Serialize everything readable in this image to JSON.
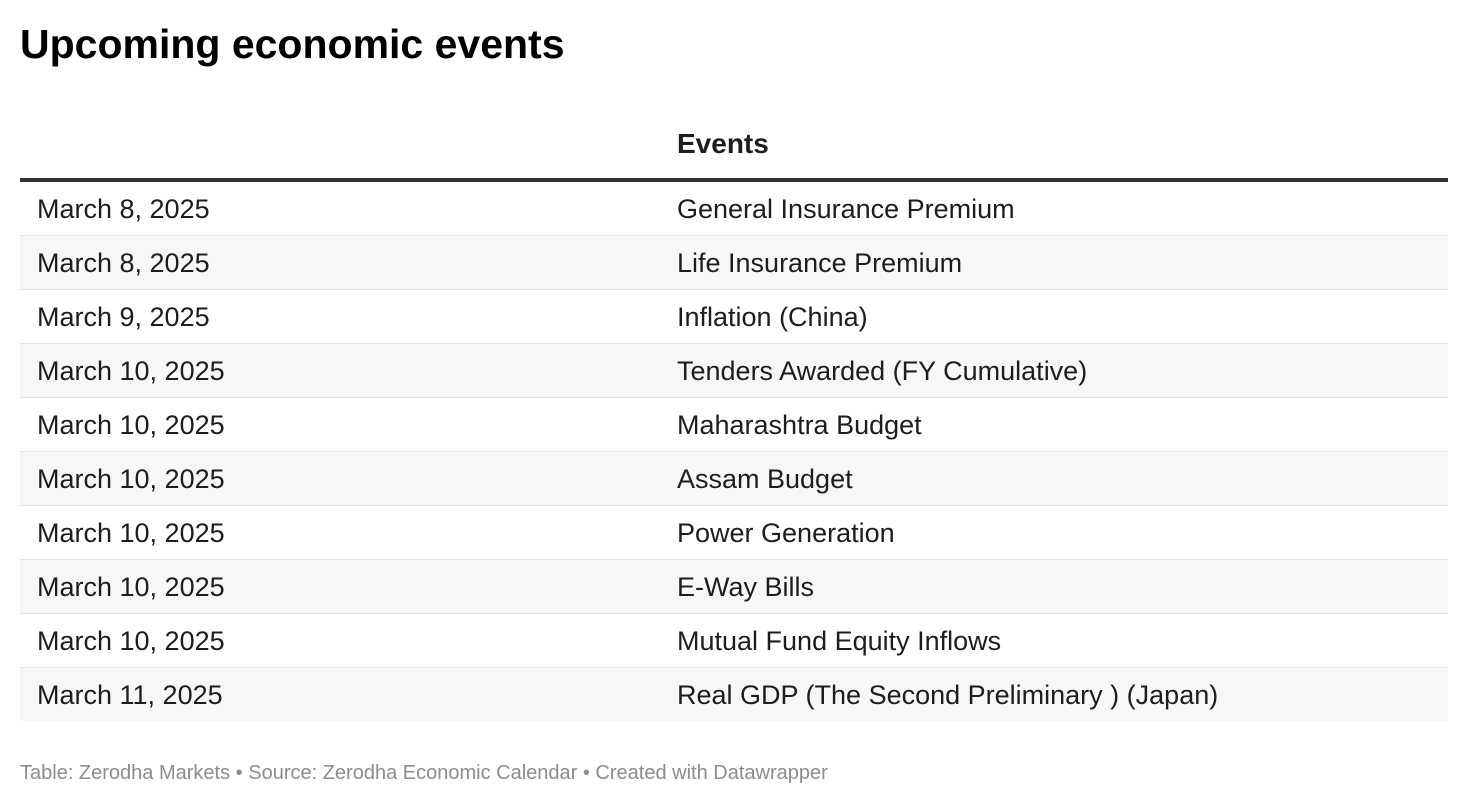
{
  "chart_data": {
    "type": "table",
    "title": "Upcoming economic events",
    "columns": [
      "",
      "Events"
    ],
    "rows": [
      {
        "date": "March 8, 2025",
        "event": "General Insurance Premium"
      },
      {
        "date": "March 8, 2025",
        "event": "Life Insurance Premium"
      },
      {
        "date": "March 9, 2025",
        "event": "Inflation (China)"
      },
      {
        "date": "March 10, 2025",
        "event": "Tenders Awarded (FY Cumulative)"
      },
      {
        "date": "March 10, 2025",
        "event": "Maharashtra Budget"
      },
      {
        "date": "March 10, 2025",
        "event": "Assam Budget"
      },
      {
        "date": "March 10, 2025",
        "event": "Power Generation"
      },
      {
        "date": "March 10, 2025",
        "event": "E-Way Bills"
      },
      {
        "date": "March 10, 2025",
        "event": "Mutual Fund Equity Inflows"
      },
      {
        "date": "March 11, 2025",
        "event": "Real GDP (The Second Preliminary ) (Japan)"
      }
    ],
    "footer": {
      "table": "Table: Zerodha Markets",
      "source": "Source: Zerodha Economic Calendar",
      "credit": "Created with Datawrapper",
      "separator": " • "
    }
  },
  "colors": {
    "text": "#1d1d1d",
    "header_rule": "#333333",
    "row_rule": "#e3e3e3",
    "alt_row_bg": "#f7f7f7",
    "footer_text": "#8c8c8c"
  }
}
